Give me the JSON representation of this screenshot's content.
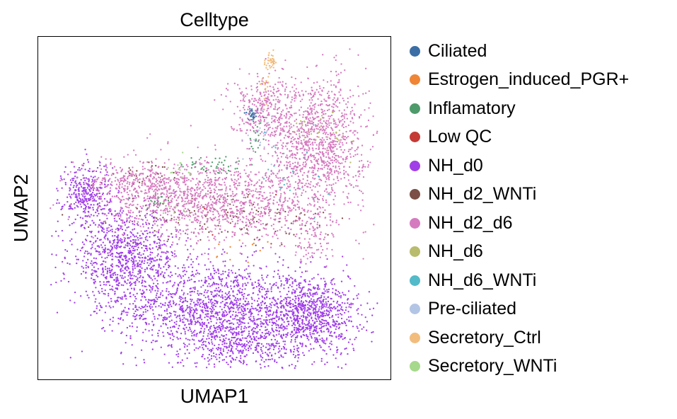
{
  "chart_data": {
    "type": "scatter",
    "title": "Celltype",
    "xlabel": "UMAP1",
    "ylabel": "UMAP2",
    "xticks": "none",
    "yticks": "none",
    "grid": false,
    "legend_placement": "right",
    "series": [
      {
        "name": "Ciliated",
        "color": "#3a6ea5",
        "regions": [
          {
            "cx": 0.61,
            "cy": 0.78,
            "sx": 0.012,
            "sy": 0.012,
            "n": 35
          }
        ]
      },
      {
        "name": "Estrogen_induced_PGR+",
        "color": "#ef8535",
        "regions": [
          {
            "cx": 0.58,
            "cy": 0.37,
            "sx": 0.05,
            "sy": 0.02,
            "n": 12
          }
        ]
      },
      {
        "name": "Inflamatory",
        "color": "#4e9a6a",
        "regions": [
          {
            "cx": 0.5,
            "cy": 0.63,
            "sx": 0.05,
            "sy": 0.015,
            "n": 40
          },
          {
            "cx": 0.33,
            "cy": 0.52,
            "sx": 0.02,
            "sy": 0.015,
            "n": 25
          },
          {
            "cx": 0.62,
            "cy": 0.7,
            "sx": 0.01,
            "sy": 0.04,
            "n": 20
          }
        ]
      },
      {
        "name": "Low QC",
        "color": "#c43a35",
        "regions": [
          {
            "cx": 0.55,
            "cy": 0.48,
            "sx": 0.15,
            "sy": 0.05,
            "n": 12
          }
        ]
      },
      {
        "name": "NH_d0",
        "color": "#a03ee8",
        "regions": [
          {
            "cx": 0.5,
            "cy": 0.2,
            "sx": 0.13,
            "sy": 0.07,
            "n": 1400
          },
          {
            "cx": 0.78,
            "cy": 0.18,
            "sx": 0.07,
            "sy": 0.06,
            "n": 900
          },
          {
            "cx": 0.24,
            "cy": 0.35,
            "sx": 0.08,
            "sy": 0.07,
            "n": 900
          },
          {
            "cx": 0.13,
            "cy": 0.54,
            "sx": 0.035,
            "sy": 0.05,
            "n": 350
          },
          {
            "cx": 0.58,
            "cy": 0.08,
            "sx": 0.08,
            "sy": 0.035,
            "n": 300
          }
        ]
      },
      {
        "name": "NH_d2_WNTi",
        "color": "#7b4f45",
        "regions": [
          {
            "cx": 0.55,
            "cy": 0.47,
            "sx": 0.16,
            "sy": 0.04,
            "n": 110
          },
          {
            "cx": 0.33,
            "cy": 0.6,
            "sx": 0.06,
            "sy": 0.02,
            "n": 25
          }
        ]
      },
      {
        "name": "NH_d2_d6",
        "color": "#d67ac0",
        "regions": [
          {
            "cx": 0.8,
            "cy": 0.7,
            "sx": 0.07,
            "sy": 0.1,
            "n": 1100
          },
          {
            "cx": 0.64,
            "cy": 0.8,
            "sx": 0.05,
            "sy": 0.05,
            "n": 300
          },
          {
            "cx": 0.5,
            "cy": 0.52,
            "sx": 0.16,
            "sy": 0.06,
            "n": 1300
          },
          {
            "cx": 0.28,
            "cy": 0.58,
            "sx": 0.07,
            "sy": 0.03,
            "n": 250
          },
          {
            "cx": 0.78,
            "cy": 0.42,
            "sx": 0.03,
            "sy": 0.05,
            "n": 100
          }
        ]
      },
      {
        "name": "NH_d6",
        "color": "#b8bc6c",
        "regions": [
          {
            "cx": 0.82,
            "cy": 0.73,
            "sx": 0.04,
            "sy": 0.03,
            "n": 30
          }
        ]
      },
      {
        "name": "NH_d6_WNTi",
        "color": "#52bac8",
        "regions": [
          {
            "cx": 0.72,
            "cy": 0.6,
            "sx": 0.06,
            "sy": 0.06,
            "n": 25
          }
        ]
      },
      {
        "name": "Pre-ciliated",
        "color": "#b3c5e5",
        "regions": [
          {
            "cx": 0.63,
            "cy": 0.72,
            "sx": 0.03,
            "sy": 0.04,
            "n": 20
          }
        ]
      },
      {
        "name": "Secretory_Ctrl",
        "color": "#f2bc7c",
        "regions": [
          {
            "cx": 0.665,
            "cy": 0.94,
            "sx": 0.008,
            "sy": 0.012,
            "n": 40
          },
          {
            "cx": 0.65,
            "cy": 0.86,
            "sx": 0.006,
            "sy": 0.03,
            "n": 15
          }
        ]
      },
      {
        "name": "Secretory_WNTi",
        "color": "#a6d98b",
        "regions": [
          {
            "cx": 0.4,
            "cy": 0.62,
            "sx": 0.03,
            "sy": 0.02,
            "n": 15
          },
          {
            "cx": 0.38,
            "cy": 0.5,
            "sx": 0.03,
            "sy": 0.02,
            "n": 10
          }
        ]
      }
    ]
  }
}
